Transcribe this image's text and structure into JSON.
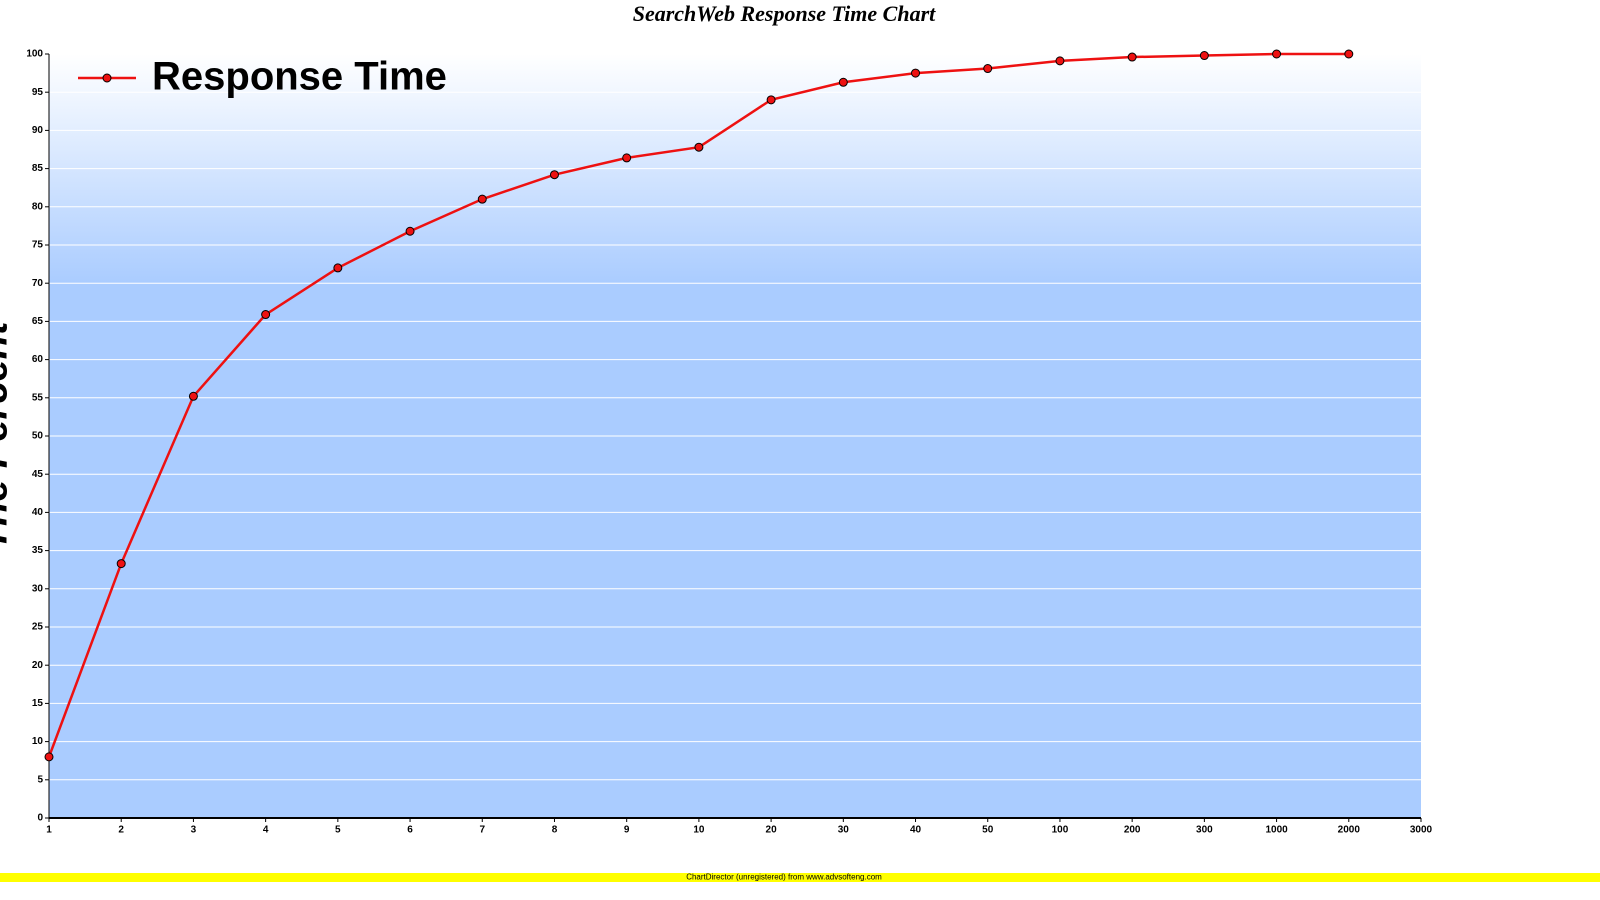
{
  "chart_data": {
    "type": "line",
    "title": "SearchWeb Response Time Chart",
    "y_label": "The Percent",
    "footer": "ChartDirector (unregistered) from www.advsofteng.com",
    "categories": [
      "1",
      "2",
      "3",
      "4",
      "5",
      "6",
      "7",
      "8",
      "9",
      "10",
      "20",
      "30",
      "40",
      "50",
      "100",
      "200",
      "300",
      "1000",
      "2000",
      "3000"
    ],
    "series": [
      {
        "name": "Response Time",
        "color": "#ee1111",
        "values": [
          8,
          33.3,
          55.2,
          65.9,
          72,
          76.8,
          81,
          84.2,
          86.4,
          87.8,
          94,
          96.3,
          97.5,
          98.1,
          99.1,
          99.6,
          99.8,
          100,
          100,
          null
        ]
      }
    ],
    "ylim": [
      0,
      100
    ],
    "yticks": [
      0,
      5,
      10,
      15,
      20,
      25,
      30,
      35,
      40,
      45,
      50,
      55,
      60,
      65,
      70,
      75,
      80,
      85,
      90,
      95,
      100
    ],
    "grid": true,
    "legend": "top-left"
  }
}
